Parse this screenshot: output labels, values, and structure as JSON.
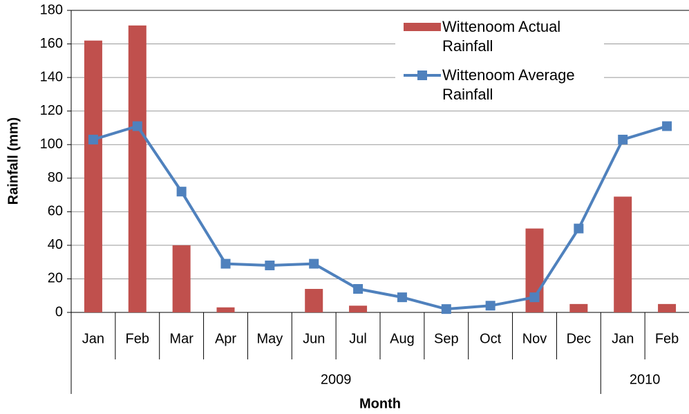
{
  "chart_data": {
    "type": "bar",
    "y_label": "Rainfall (mm)",
    "x_label": "Month",
    "categories": [
      "Jan",
      "Feb",
      "Mar",
      "Apr",
      "May",
      "Jun",
      "Jul",
      "Aug",
      "Sep",
      "Oct",
      "Nov",
      "Dec",
      "Jan",
      "Feb"
    ],
    "groups": [
      {
        "label": "2009",
        "span": 12
      },
      {
        "label": "2010",
        "span": 2
      }
    ],
    "series": [
      {
        "name": "Wittenoom Actual Rainfall",
        "type": "bar",
        "color": "#c0504d",
        "values": [
          162,
          171,
          40,
          3,
          0,
          14,
          4,
          0,
          0,
          0,
          50,
          5,
          69,
          5
        ]
      },
      {
        "name": "Wittenoom Average Rainfall",
        "type": "line",
        "color": "#4f81bd",
        "values": [
          103,
          111,
          72,
          29,
          28,
          29,
          14,
          9,
          2,
          4,
          9,
          50,
          103,
          111
        ]
      }
    ],
    "ylim": [
      0,
      180
    ],
    "yticks": [
      0,
      20,
      40,
      60,
      80,
      100,
      120,
      140,
      160,
      180
    ],
    "grid": true,
    "legend": "upper right"
  }
}
